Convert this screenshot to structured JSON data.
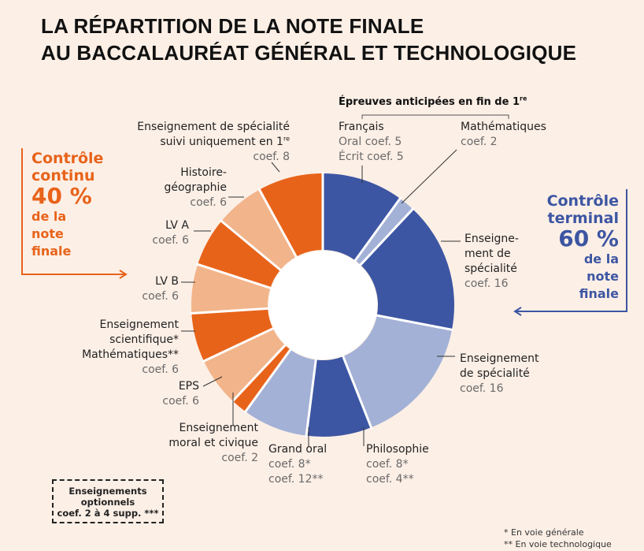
{
  "title": {
    "line1": "LA RÉPARTITION DE LA NOTE FINALE",
    "line2": "AU BACCALAURÉAT GÉNÉRAL ET TECHNOLOGIQUE"
  },
  "anticipees": {
    "text": "Épreuves anticipées en fin de 1",
    "sup": "re"
  },
  "controle_continu": {
    "l1": "Contrôle",
    "l2": "continu",
    "l3": "40 %",
    "l4": "de la",
    "l5": "note",
    "l6": "finale"
  },
  "controle_terminal": {
    "l1": "Contrôle",
    "l2": "terminal",
    "l3": "60 %",
    "l4": "de la",
    "l5": "note",
    "l6": "finale"
  },
  "labels": {
    "francais": {
      "name": "Français",
      "c1": "Oral coef. 5",
      "c2": "Écrit coef. 5"
    },
    "maths_ant": {
      "name": "Mathématiques",
      "c1": "coef. 2"
    },
    "spe1": {
      "n1": "Enseigne-",
      "n2": "ment de",
      "n3": "spécialité",
      "c1": "coef. 16"
    },
    "spe2": {
      "n1": "Enseignement",
      "n2": "de spécialité",
      "c1": "coef. 16"
    },
    "philo": {
      "name": "Philosophie",
      "c1": "coef. 8*",
      "c2": "coef. 4**"
    },
    "grand_oral": {
      "name": "Grand oral",
      "c1": "coef. 8*",
      "c2": "coef. 12**"
    },
    "emc": {
      "n1": "Enseignement",
      "n2": "moral et civique",
      "c1": "coef. 2"
    },
    "eps": {
      "name": "EPS",
      "c1": "coef. 6"
    },
    "sci": {
      "n1": "Enseignement",
      "n2": "scientifique*",
      "n3": "Mathématiques**",
      "c1": "coef. 6"
    },
    "lvb": {
      "name": "LV B",
      "c1": "coef. 6"
    },
    "lva": {
      "name": "LV A",
      "c1": "coef. 6"
    },
    "hg": {
      "n1": "Histoire-",
      "n2": "géographie",
      "c1": "coef. 6"
    },
    "spe_1re": {
      "n1": "Enseignement de spécialité",
      "n2": "suivi uniquement en 1",
      "n2sup": "re",
      "c1": "coef. 8"
    }
  },
  "optionnels": {
    "l1": "Enseignements",
    "l2": "optionnels",
    "l3": "coef. 2 à 4 supp. ***"
  },
  "footnotes": {
    "f1": "* En voie générale",
    "f2": "** En voie technologique"
  },
  "colors": {
    "orange": "#e8631a",
    "light_orange": "#f2b48a",
    "blue": "#3d56a3",
    "light_blue": "#a3b1d6",
    "bg": "#fcefe6"
  },
  "chart_data": {
    "type": "pie",
    "title": "La répartition de la note finale au baccalauréat général et technologique",
    "unit": "coefficient",
    "total": 100,
    "slices": [
      {
        "name": "Français",
        "value": 10,
        "color": "#3d56a3",
        "group": "Contrôle terminal"
      },
      {
        "name": "Mathématiques (épreuve anticipée)",
        "value": 2,
        "color": "#a3b1d6",
        "group": "Contrôle terminal"
      },
      {
        "name": "Enseignement de spécialité",
        "value": 16,
        "color": "#3d56a3",
        "group": "Contrôle terminal"
      },
      {
        "name": "Enseignement de spécialité",
        "value": 16,
        "color": "#a3b1d6",
        "group": "Contrôle terminal"
      },
      {
        "name": "Philosophie",
        "value": 8,
        "color": "#3d56a3",
        "group": "Contrôle terminal"
      },
      {
        "name": "Grand oral",
        "value": 8,
        "color": "#a3b1d6",
        "group": "Contrôle terminal"
      },
      {
        "name": "Enseignement moral et civique",
        "value": 2,
        "color": "#e8631a",
        "group": "Contrôle continu"
      },
      {
        "name": "EPS",
        "value": 6,
        "color": "#f2b48a",
        "group": "Contrôle continu"
      },
      {
        "name": "Enseignement scientifique / Mathématiques",
        "value": 6,
        "color": "#e8631a",
        "group": "Contrôle continu"
      },
      {
        "name": "LV B",
        "value": 6,
        "color": "#f2b48a",
        "group": "Contrôle continu"
      },
      {
        "name": "LV A",
        "value": 6,
        "color": "#e8631a",
        "group": "Contrôle continu"
      },
      {
        "name": "Histoire-géographie",
        "value": 6,
        "color": "#f2b48a",
        "group": "Contrôle continu"
      },
      {
        "name": "Enseignement de spécialité suivi uniquement en 1re",
        "value": 8,
        "color": "#e8631a",
        "group": "Contrôle continu"
      }
    ],
    "groups": [
      {
        "name": "Contrôle continu",
        "percent": 40
      },
      {
        "name": "Contrôle terminal",
        "percent": 60
      }
    ]
  }
}
